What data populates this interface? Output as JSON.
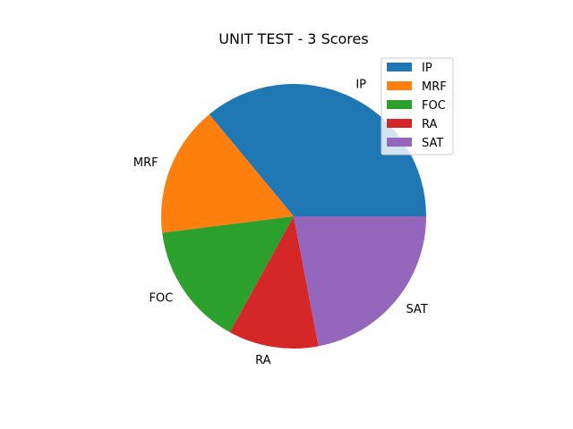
{
  "chart_data": {
    "type": "pie",
    "title": "UNIT TEST - 3 Scores",
    "labels": [
      "IP",
      "MRF",
      "FOC",
      "RA",
      "SAT"
    ],
    "values": [
      36,
      16,
      15,
      11,
      22
    ],
    "colors": [
      "#1f77b4",
      "#ff7f0e",
      "#2ca02c",
      "#d62728",
      "#9467bd"
    ],
    "start_angle": 0,
    "direction": "counterclockwise",
    "legend": {
      "position": "top-right",
      "entries": [
        "IP",
        "MRF",
        "FOC",
        "RA",
        "SAT"
      ]
    }
  }
}
